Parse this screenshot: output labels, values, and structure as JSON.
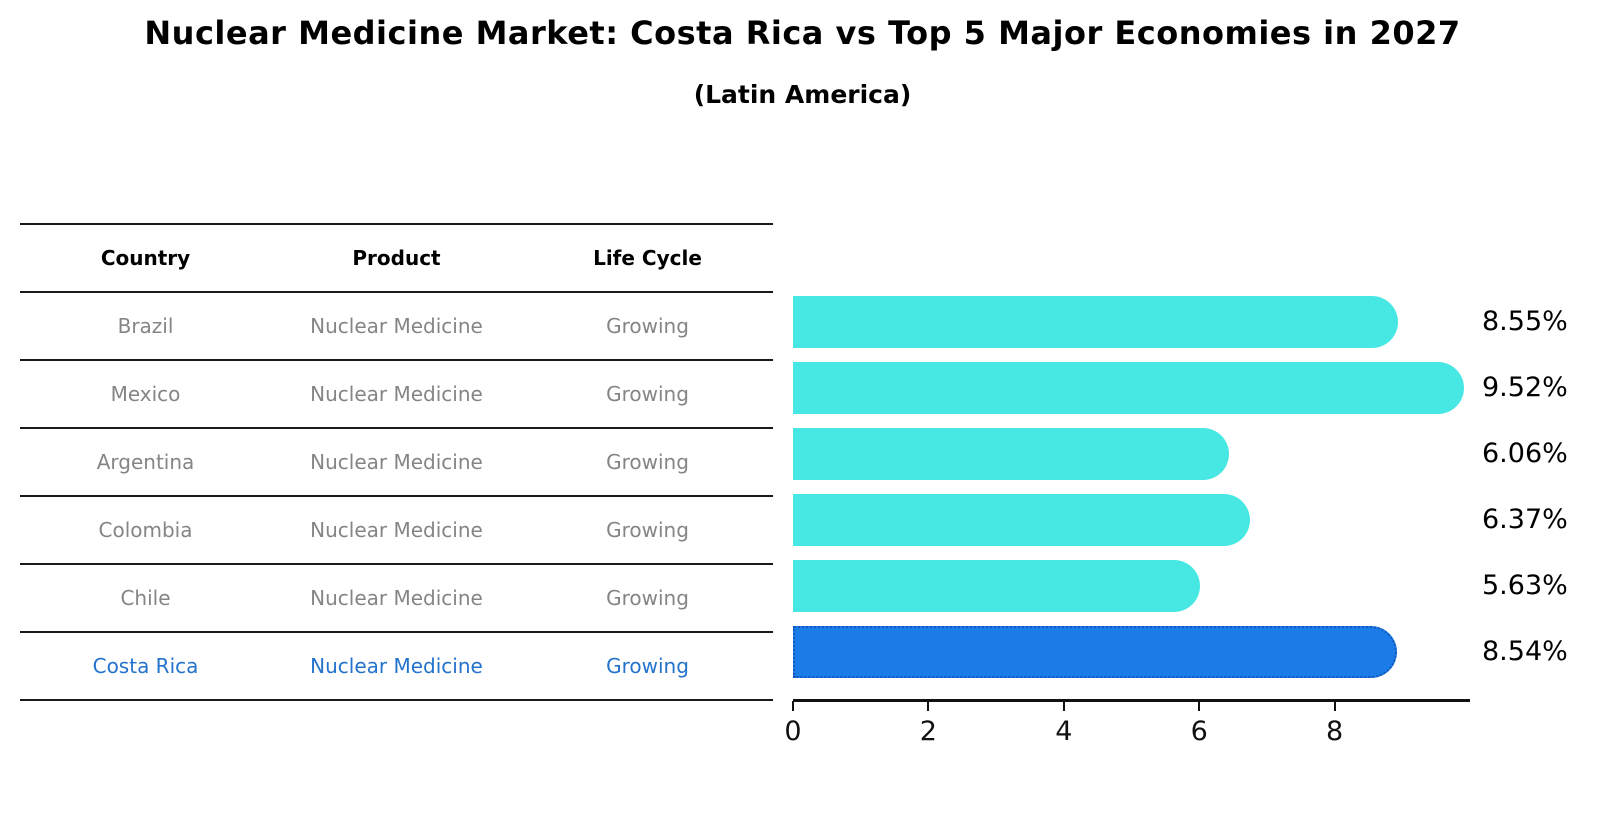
{
  "title": "Nuclear Medicine Market: Costa Rica vs Top 5 Major Economies in 2027",
  "subtitle": "(Latin America)",
  "table": {
    "headers": [
      "Country",
      "Product",
      "Life Cycle"
    ],
    "rows": [
      {
        "country": "Brazil",
        "product": "Nuclear Medicine",
        "life_cycle": "Growing",
        "highlight": false
      },
      {
        "country": "Mexico",
        "product": "Nuclear Medicine",
        "life_cycle": "Growing",
        "highlight": false
      },
      {
        "country": "Argentina",
        "product": "Nuclear Medicine",
        "life_cycle": "Growing",
        "highlight": false
      },
      {
        "country": "Colombia",
        "product": "Nuclear Medicine",
        "life_cycle": "Growing",
        "highlight": false
      },
      {
        "country": "Chile",
        "product": "Nuclear Medicine",
        "life_cycle": "Growing",
        "highlight": false
      },
      {
        "country": "Costa Rica",
        "product": "Nuclear Medicine",
        "life_cycle": "Growing",
        "highlight": true
      }
    ]
  },
  "chart_data": {
    "type": "bar",
    "orientation": "horizontal",
    "title": "Nuclear Medicine Market: Costa Rica vs Top 5 Major Economies in 2027",
    "subtitle": "(Latin America)",
    "categories": [
      "Brazil",
      "Mexico",
      "Argentina",
      "Colombia",
      "Chile",
      "Costa Rica"
    ],
    "values": [
      8.55,
      9.52,
      6.06,
      6.37,
      5.63,
      8.54
    ],
    "value_labels": [
      "8.55%",
      "9.52%",
      "6.06%",
      "6.37%",
      "5.63%",
      "8.54%"
    ],
    "unit": "%",
    "xlim": [
      0,
      10
    ],
    "xticks": [
      0,
      2,
      4,
      6,
      8
    ],
    "grid": false,
    "legend": false,
    "highlight_index": 5,
    "bar_color": "#47e8e3",
    "highlight_bar_color": "#1b7ce8",
    "highlight_edge_color": "#1257bd"
  },
  "colors": {
    "row_text": "#858585",
    "highlight_text": "#2373cc",
    "header_text": "#000000",
    "axis": "#111111"
  }
}
